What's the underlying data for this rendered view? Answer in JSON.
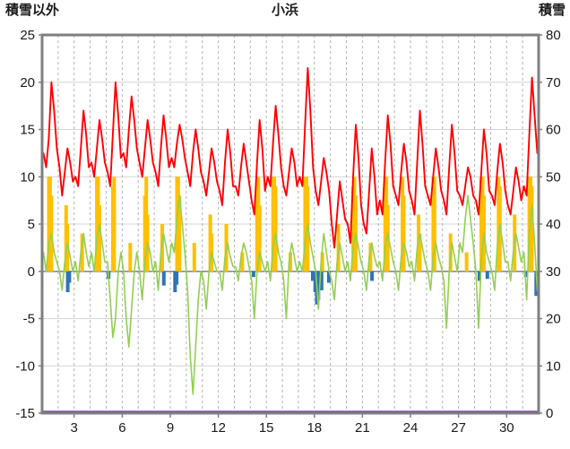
{
  "header": {
    "left_label": "積雪以外",
    "title": "小浜",
    "right_label": "積雪"
  },
  "chart_data": {
    "type": "line",
    "title": "小浜",
    "grid": true,
    "legend": "none",
    "left_axis": {
      "label": "積雪以外",
      "min": -15,
      "max": 25,
      "tick_step": 5,
      "ticks": [
        25,
        20,
        15,
        10,
        5,
        0,
        -5,
        -10,
        -15
      ]
    },
    "right_axis": {
      "label": "積雪",
      "min": 0,
      "max": 80,
      "tick_step": 10,
      "ticks": [
        80,
        70,
        60,
        50,
        40,
        30,
        20,
        10,
        0
      ]
    },
    "x_axis": {
      "unit": "day of month",
      "min": 0,
      "max": 31,
      "gridline_every_days": 1,
      "tick_labels": [
        "3",
        "6",
        "9",
        "12",
        "15",
        "18",
        "21",
        "24",
        "27",
        "30"
      ],
      "tick_positions": [
        2,
        5,
        8,
        11,
        14,
        17,
        20,
        23,
        26,
        29
      ]
    },
    "series": [
      {
        "name": "orange-bars",
        "type": "bar",
        "axis": "left",
        "color": "#FFC000",
        "bars": [
          [
            0.42,
            10
          ],
          [
            0.5,
            10
          ],
          [
            0.58,
            8
          ],
          [
            1.5,
            7
          ],
          [
            1.58,
            5
          ],
          [
            2.5,
            4
          ],
          [
            3.42,
            10
          ],
          [
            3.5,
            10
          ],
          [
            3.58,
            7
          ],
          [
            4.42,
            9
          ],
          [
            4.5,
            10
          ],
          [
            5.5,
            3
          ],
          [
            6.42,
            8
          ],
          [
            6.5,
            10
          ],
          [
            6.58,
            6
          ],
          [
            7.5,
            5
          ],
          [
            8.42,
            10
          ],
          [
            8.5,
            10
          ],
          [
            8.58,
            8
          ],
          [
            9.5,
            3
          ],
          [
            10.5,
            6
          ],
          [
            10.58,
            4
          ],
          [
            11.5,
            5
          ],
          [
            12.5,
            2
          ],
          [
            13.42,
            9
          ],
          [
            13.5,
            10
          ],
          [
            13.58,
            7
          ],
          [
            14.42,
            10
          ],
          [
            14.5,
            10
          ],
          [
            14.58,
            9
          ],
          [
            15.5,
            2
          ],
          [
            16.42,
            10
          ],
          [
            16.5,
            10
          ],
          [
            16.58,
            9
          ],
          [
            17.5,
            2
          ],
          [
            18.5,
            5
          ],
          [
            19.42,
            9
          ],
          [
            19.5,
            10
          ],
          [
            19.58,
            8
          ],
          [
            20.5,
            3
          ],
          [
            21.42,
            10
          ],
          [
            21.5,
            10
          ],
          [
            21.58,
            7
          ],
          [
            22.5,
            10
          ],
          [
            22.58,
            8
          ],
          [
            23.5,
            6
          ],
          [
            23.58,
            4
          ],
          [
            24.42,
            10
          ],
          [
            24.5,
            10
          ],
          [
            25.5,
            4
          ],
          [
            26.5,
            2
          ],
          [
            27.42,
            10
          ],
          [
            27.5,
            10
          ],
          [
            27.58,
            8
          ],
          [
            28.5,
            10
          ],
          [
            28.58,
            9
          ],
          [
            29.5,
            6
          ],
          [
            30.42,
            10
          ],
          [
            30.5,
            10
          ],
          [
            30.58,
            9
          ]
        ]
      },
      {
        "name": "blue-bars",
        "type": "bar",
        "axis": "left",
        "color": "#2E75B6",
        "bars": [
          [
            1.6,
            -2.2
          ],
          [
            1.7,
            -1.2
          ],
          [
            4.15,
            -0.8
          ],
          [
            7.6,
            -1.5
          ],
          [
            8.3,
            -2.2
          ],
          [
            8.4,
            -1.4
          ],
          [
            13.2,
            -0.6
          ],
          [
            16.9,
            -1.0
          ],
          [
            17.05,
            -2.2
          ],
          [
            17.15,
            -3.5
          ],
          [
            17.25,
            -3.0
          ],
          [
            17.45,
            -2.0
          ],
          [
            17.9,
            -1.2
          ],
          [
            20.6,
            -1.0
          ],
          [
            27.3,
            -1.0
          ],
          [
            27.8,
            -0.8
          ],
          [
            30.2,
            -0.6
          ],
          [
            30.85,
            -2.6
          ],
          [
            30.95,
            -1.8
          ]
        ]
      },
      {
        "name": "green-line",
        "type": "line",
        "axis": "left",
        "color": "#92D050",
        "points_per_day": 6,
        "values": [
          2,
          0,
          3,
          4,
          2,
          1,
          0,
          -2,
          1,
          3,
          1.5,
          0,
          1,
          -1,
          2,
          4,
          2,
          0.5,
          2,
          0,
          3.5,
          5,
          3,
          1,
          1,
          -3,
          -7,
          -5,
          0,
          2,
          0,
          -5,
          -8,
          -4,
          0,
          2,
          0,
          -3,
          1,
          3,
          2,
          0,
          1,
          -2,
          2,
          4,
          2.5,
          1,
          3,
          2,
          5.5,
          8,
          5,
          2,
          -2,
          -9,
          -13,
          -8,
          -3,
          0,
          -1,
          -4,
          0,
          2,
          1,
          0,
          0,
          -2,
          1.5,
          3,
          1.5,
          0.5,
          0.5,
          -1,
          1.5,
          3,
          2,
          0.5,
          -1,
          -5,
          0,
          2,
          1,
          0,
          1,
          -1,
          2.5,
          4,
          2,
          1,
          -1,
          -5,
          1,
          3,
          1.5,
          0,
          1,
          0,
          3,
          5,
          3,
          1.5,
          0,
          -4,
          1,
          4,
          2,
          0,
          -1,
          -3,
          1,
          3,
          1.5,
          0,
          1,
          -1,
          2.5,
          4,
          2.5,
          1,
          0,
          -2,
          1.5,
          3,
          1.5,
          0.5,
          1,
          -1,
          2.5,
          4,
          2.5,
          1,
          0,
          -2,
          1.5,
          3,
          2,
          0.5,
          1,
          -1,
          2.5,
          4,
          2.5,
          1,
          0,
          -2,
          1.5,
          3,
          1.5,
          0.5,
          -1,
          -6,
          0,
          3,
          1.5,
          0,
          3,
          2,
          5.5,
          8,
          5.5,
          3,
          0,
          -6,
          1,
          4,
          2,
          1,
          0,
          -2,
          2.5,
          5,
          3,
          1,
          1,
          -1,
          2,
          4,
          2.5,
          1,
          2,
          -3,
          4,
          7,
          3,
          -2
        ]
      },
      {
        "name": "red-line",
        "type": "line",
        "axis": "left",
        "color": "#FF0000",
        "points_per_day": 6,
        "values": [
          12.5,
          11,
          14,
          20,
          17,
          13,
          11,
          8,
          10.5,
          13,
          11.5,
          9.5,
          10,
          9,
          13,
          17,
          14.5,
          11,
          11.5,
          10,
          13,
          16,
          14,
          11.5,
          10.5,
          9,
          14.5,
          20,
          16.5,
          12,
          12.5,
          11,
          15,
          18.5,
          16,
          13,
          11.5,
          10,
          13,
          16,
          14,
          11.5,
          10.5,
          9,
          13,
          16.5,
          14,
          11,
          12,
          11,
          13.5,
          15.5,
          14,
          12,
          10.5,
          9,
          12.5,
          15,
          13,
          10.5,
          9.5,
          8,
          10.5,
          13,
          11.5,
          9.5,
          8.5,
          7,
          11.5,
          15,
          12.5,
          9,
          9,
          8,
          11,
          13.5,
          11.5,
          9.5,
          7.5,
          6,
          11.5,
          16,
          13,
          8.5,
          10,
          9,
          13.5,
          17.5,
          14.5,
          11,
          9,
          8,
          10.5,
          13,
          11.5,
          9,
          10,
          9,
          15.5,
          21.5,
          17,
          11,
          8.5,
          7,
          9.5,
          12,
          10.5,
          8.5,
          5,
          2.5,
          6,
          9.5,
          7.5,
          5.5,
          5,
          3,
          10,
          15.5,
          12,
          7,
          5,
          4,
          8.5,
          13,
          10,
          6,
          7.5,
          6,
          11.5,
          16.5,
          13.5,
          9,
          8,
          7,
          10.5,
          13.5,
          11.5,
          8.5,
          7.5,
          6,
          11.5,
          17,
          13.5,
          9,
          8,
          7,
          10,
          13,
          11,
          8.5,
          7.5,
          6,
          11,
          15.5,
          12.5,
          8.5,
          8,
          7,
          9,
          11,
          10,
          8,
          7.5,
          6,
          10.5,
          15,
          12.5,
          8.5,
          8,
          7,
          10.5,
          13.5,
          11.5,
          8.5,
          7,
          6,
          8.5,
          11,
          9.5,
          7.5,
          9,
          8,
          14.5,
          20.5,
          16.5,
          12.5
        ]
      },
      {
        "name": "snow-depth",
        "type": "line",
        "axis": "right",
        "color": "#7030A0",
        "constant": 0
      }
    ],
    "colors": {
      "plot_border": "#7F7F7F",
      "zero_line": "#8A8A8A",
      "h_gridline": "#D4D4D4",
      "v_gridline": "#B4B4B4",
      "tick_text": "#1A1A1A"
    }
  }
}
